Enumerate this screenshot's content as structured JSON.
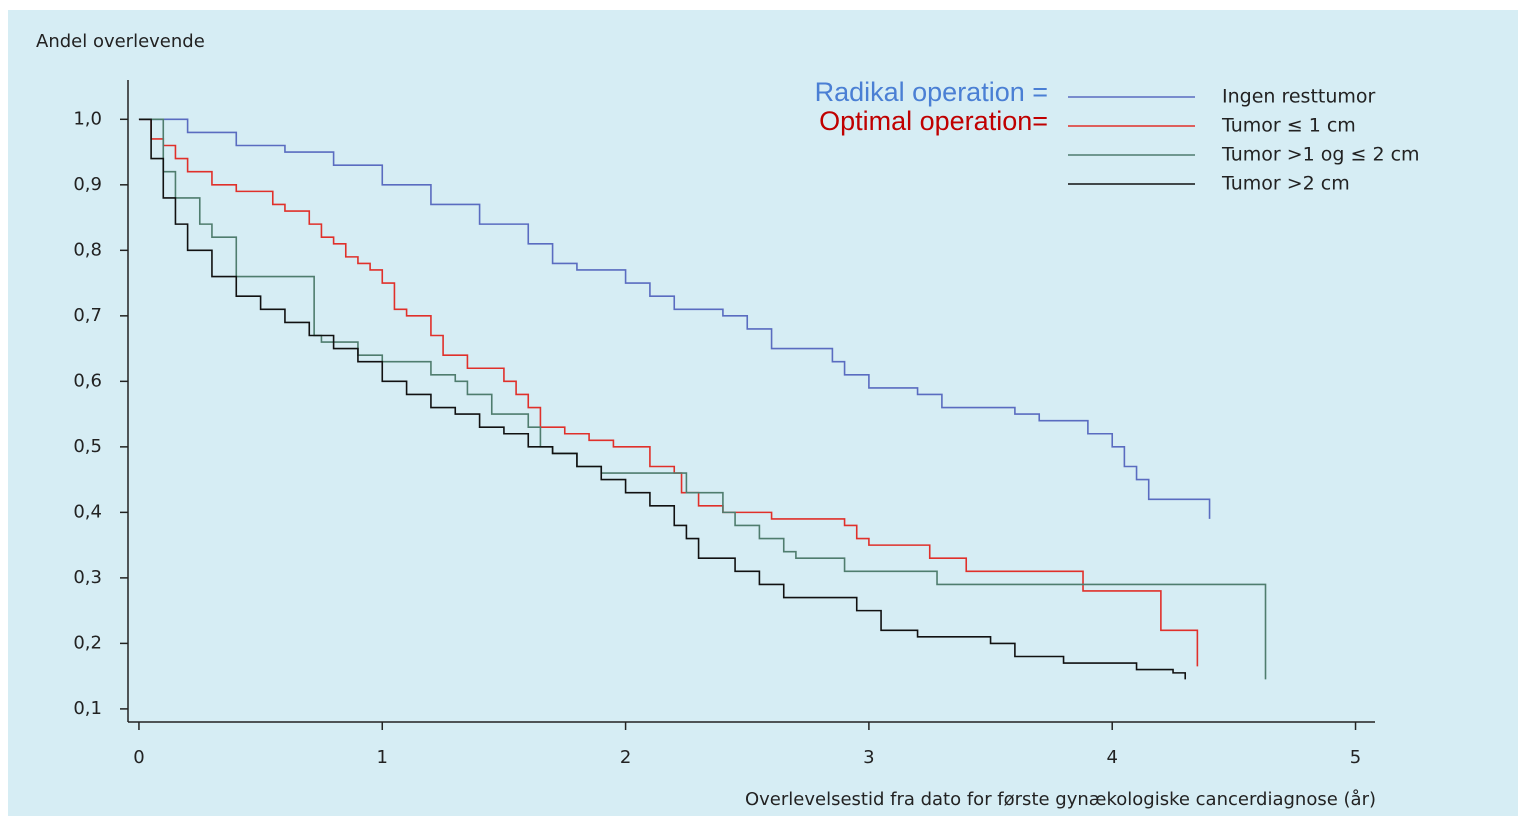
{
  "chart_data": {
    "type": "step-line",
    "title": "Andel overlevende",
    "x_label": "Overlevelsestid fra dato for første gynækologiske cancerdiagnose (år)",
    "annotations": [
      {
        "text": "Radikal operation =",
        "color": "#4a7fd4"
      },
      {
        "text": "Optimal operation=",
        "color": "#c00000"
      }
    ],
    "xlim": [
      -0.045,
      5.08
    ],
    "ylim": [
      0.08,
      1.06
    ],
    "xticks": [
      0,
      1,
      2,
      3,
      4,
      5
    ],
    "yticks": [
      {
        "value": 0.1,
        "label": "0,1"
      },
      {
        "value": 0.2,
        "label": "0,2"
      },
      {
        "value": 0.3,
        "label": "0,3"
      },
      {
        "value": 0.4,
        "label": "0,4"
      },
      {
        "value": 0.5,
        "label": "0,5"
      },
      {
        "value": 0.6,
        "label": "0,6"
      },
      {
        "value": 0.7,
        "label": "0,7"
      },
      {
        "value": 0.8,
        "label": "0,8"
      },
      {
        "value": 0.9,
        "label": "0,9"
      },
      {
        "value": 1.0,
        "label": "1,0"
      }
    ],
    "grid": false,
    "legend": "upper right",
    "series": [
      {
        "name": "Ingen resttumor",
        "color": "#5a6cc0",
        "x": [
          0,
          0.2,
          0.4,
          0.6,
          0.8,
          1.0,
          1.2,
          1.4,
          1.6,
          1.7,
          1.8,
          2.0,
          2.1,
          2.2,
          2.4,
          2.5,
          2.6,
          2.8,
          2.85,
          2.9,
          3.0,
          3.2,
          3.3,
          3.6,
          3.7,
          3.9,
          4.0,
          4.05,
          4.1,
          4.15,
          4.4
        ],
        "values": [
          1.0,
          0.98,
          0.96,
          0.95,
          0.93,
          0.9,
          0.87,
          0.84,
          0.81,
          0.78,
          0.77,
          0.75,
          0.73,
          0.71,
          0.7,
          0.68,
          0.65,
          0.65,
          0.63,
          0.61,
          0.59,
          0.58,
          0.56,
          0.55,
          0.54,
          0.52,
          0.5,
          0.47,
          0.45,
          0.42,
          0.39
        ]
      },
      {
        "name": "Tumor ≤ 1 cm",
        "color": "#e0302a",
        "x": [
          0,
          0.05,
          0.1,
          0.15,
          0.2,
          0.3,
          0.4,
          0.55,
          0.6,
          0.7,
          0.75,
          0.8,
          0.85,
          0.9,
          0.95,
          1.0,
          1.05,
          1.1,
          1.2,
          1.25,
          1.35,
          1.5,
          1.55,
          1.6,
          1.65,
          1.75,
          1.85,
          1.95,
          2.1,
          2.2,
          2.23,
          2.3,
          2.4,
          2.6,
          2.9,
          2.95,
          3.0,
          3.25,
          3.4,
          3.88,
          4.2,
          4.35
        ],
        "values": [
          1.0,
          0.97,
          0.96,
          0.94,
          0.92,
          0.9,
          0.89,
          0.87,
          0.86,
          0.84,
          0.82,
          0.81,
          0.79,
          0.78,
          0.77,
          0.75,
          0.71,
          0.7,
          0.67,
          0.64,
          0.62,
          0.6,
          0.58,
          0.56,
          0.53,
          0.52,
          0.51,
          0.5,
          0.47,
          0.46,
          0.43,
          0.41,
          0.4,
          0.39,
          0.38,
          0.36,
          0.35,
          0.33,
          0.31,
          0.28,
          0.22,
          0.165
        ]
      },
      {
        "name": "Tumor >1 og ≤ 2 cm",
        "color": "#4f7d6e",
        "x": [
          0,
          0.1,
          0.15,
          0.25,
          0.3,
          0.4,
          0.68,
          0.72,
          0.75,
          0.9,
          1.0,
          1.2,
          1.3,
          1.35,
          1.45,
          1.6,
          1.65,
          1.7,
          1.8,
          1.9,
          2.25,
          2.4,
          2.45,
          2.55,
          2.65,
          2.7,
          2.9,
          3.28,
          4.63
        ],
        "values": [
          1.0,
          0.92,
          0.88,
          0.84,
          0.82,
          0.76,
          0.76,
          0.67,
          0.66,
          0.64,
          0.63,
          0.61,
          0.6,
          0.58,
          0.55,
          0.53,
          0.5,
          0.49,
          0.47,
          0.46,
          0.43,
          0.4,
          0.38,
          0.36,
          0.34,
          0.33,
          0.31,
          0.29,
          0.145
        ]
      },
      {
        "name": "Tumor >2 cm",
        "color": "#111111",
        "x": [
          0,
          0.05,
          0.1,
          0.15,
          0.2,
          0.3,
          0.4,
          0.5,
          0.6,
          0.7,
          0.8,
          0.9,
          1.0,
          1.1,
          1.2,
          1.3,
          1.4,
          1.5,
          1.6,
          1.7,
          1.8,
          1.9,
          2.0,
          2.1,
          2.2,
          2.25,
          2.3,
          2.45,
          2.55,
          2.65,
          2.95,
          3.05,
          3.2,
          3.5,
          3.6,
          3.8,
          4.1,
          4.25,
          4.3
        ],
        "values": [
          1.0,
          0.94,
          0.88,
          0.84,
          0.8,
          0.76,
          0.73,
          0.71,
          0.69,
          0.67,
          0.65,
          0.63,
          0.6,
          0.58,
          0.56,
          0.55,
          0.53,
          0.52,
          0.5,
          0.49,
          0.47,
          0.45,
          0.43,
          0.41,
          0.38,
          0.36,
          0.33,
          0.31,
          0.29,
          0.27,
          0.25,
          0.22,
          0.21,
          0.2,
          0.18,
          0.17,
          0.16,
          0.155,
          0.145
        ]
      }
    ]
  }
}
